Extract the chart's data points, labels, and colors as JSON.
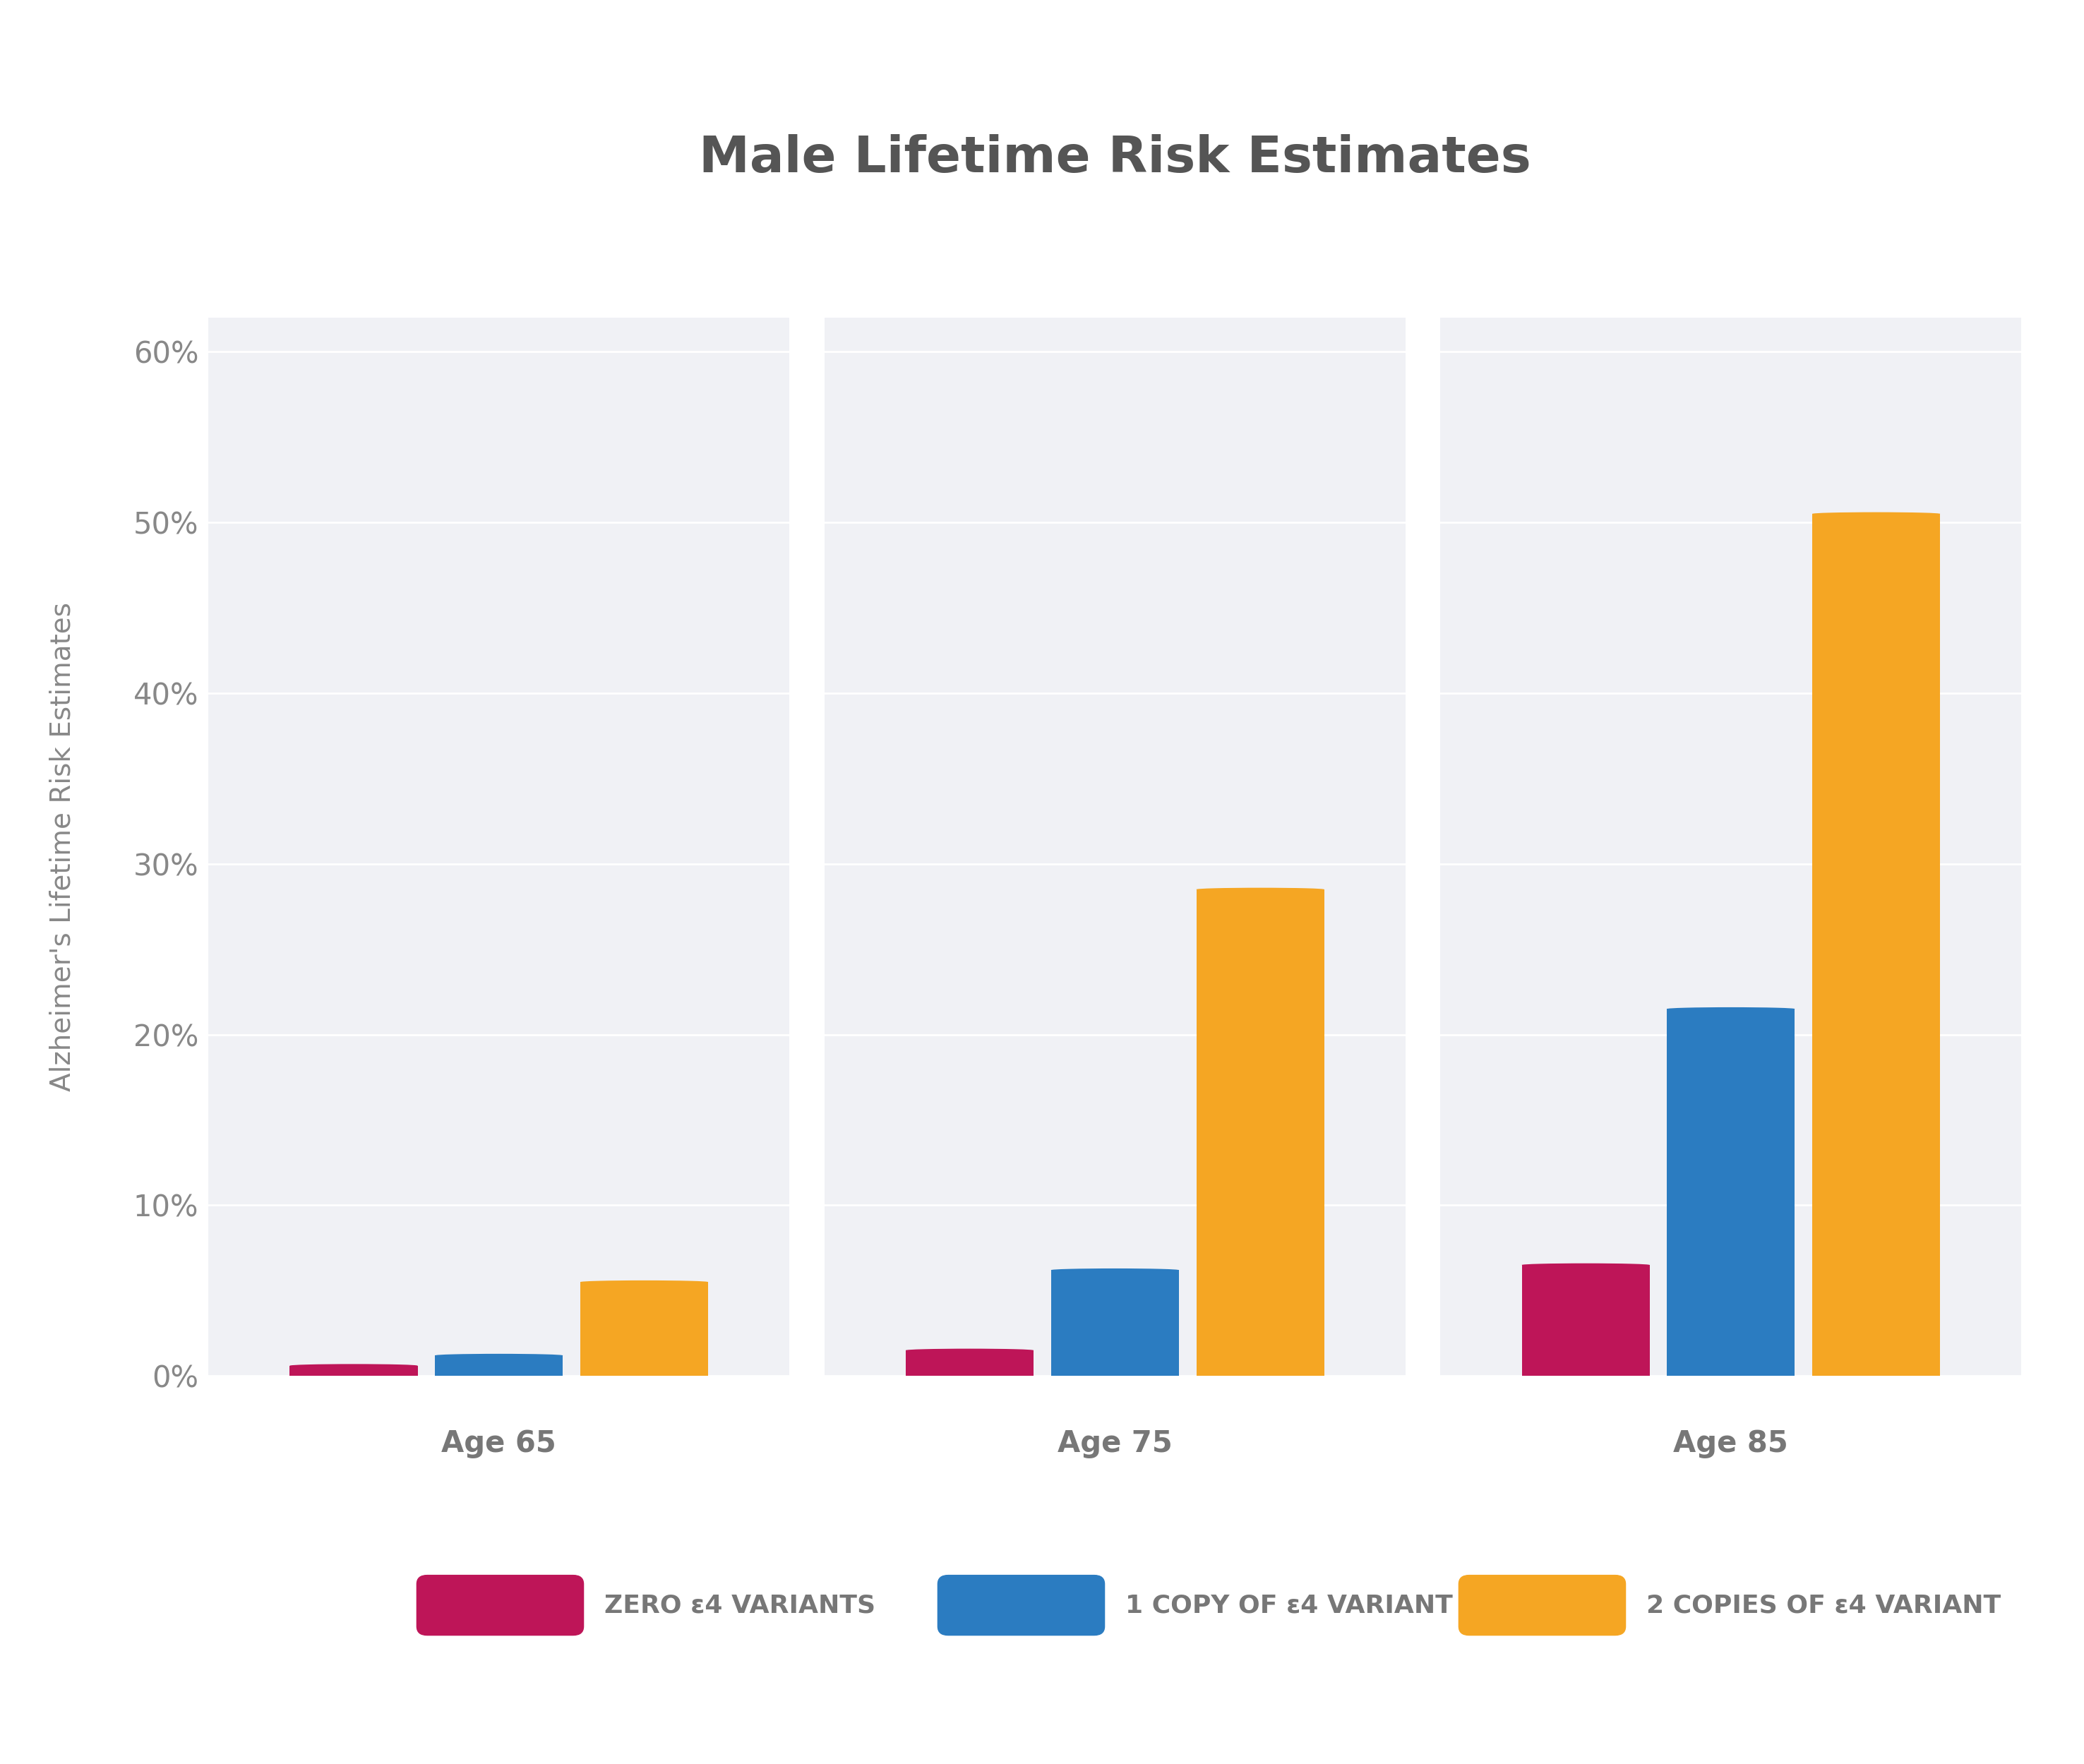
{
  "title": "Male Lifetime Risk Estimates",
  "ylabel": "Alzheimer's Lifetime Risk Estimates",
  "groups": [
    "Age 65",
    "Age 75",
    "Age 85"
  ],
  "series": [
    {
      "label": "ZERO ε4 VARIANTS",
      "color": "#BE1558",
      "values": [
        0.6,
        1.5,
        6.5
      ]
    },
    {
      "label": "1 COPY OF ε4 VARIANT",
      "color": "#2B7CC1",
      "values": [
        1.2,
        6.2,
        21.5
      ]
    },
    {
      "label": "2 COPIES OF ε4 VARIANT",
      "color": "#F5A623",
      "values": [
        5.5,
        28.5,
        50.5
      ]
    }
  ],
  "ylim": [
    0,
    62
  ],
  "yticks": [
    0,
    10,
    20,
    30,
    40,
    50,
    60
  ],
  "yticklabels": [
    "0%",
    "10%",
    "20%",
    "30%",
    "40%",
    "50%",
    "60%"
  ],
  "background_color": "#FFFFFF",
  "panel_bg": "#F0F1F5",
  "title_color": "#555555",
  "axis_label_color": "#888888",
  "tick_label_color": "#888888",
  "group_label_color": "#777777",
  "bar_width": 0.22,
  "title_fontsize": 52,
  "axis_label_fontsize": 28,
  "tick_fontsize": 30,
  "group_label_fontsize": 30,
  "legend_fontsize": 26
}
